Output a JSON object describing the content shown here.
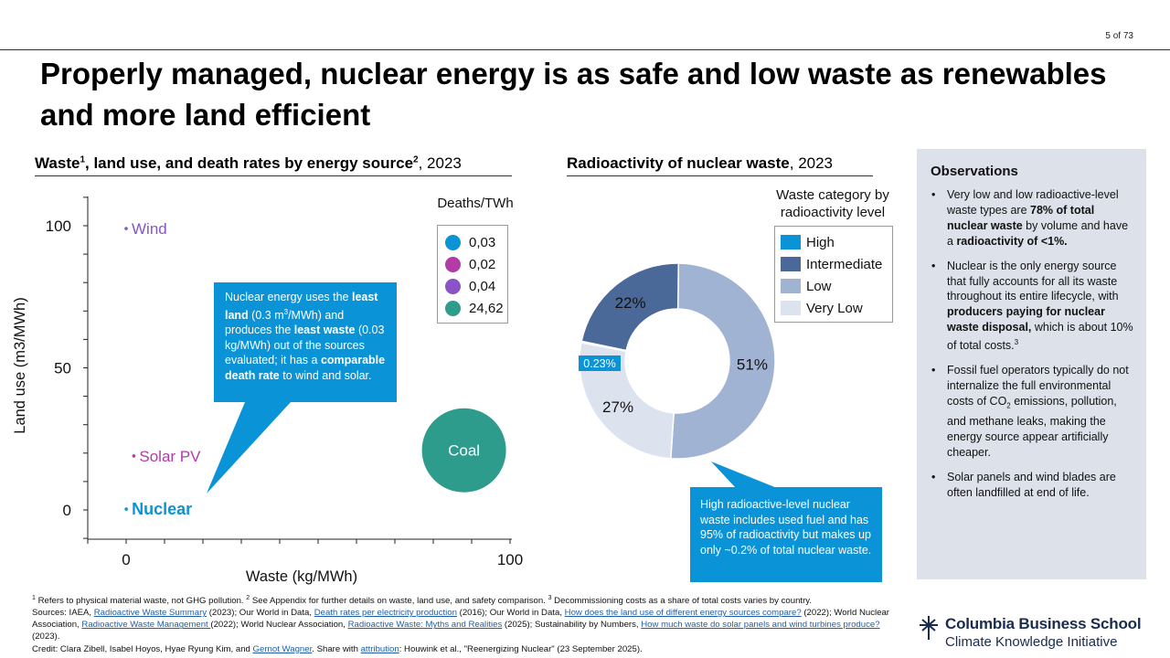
{
  "page": {
    "number": "5 of 73"
  },
  "title": "Properly managed, nuclear energy is as safe and low waste as renewables and more land efficient",
  "left_section": {
    "heading_a": "Waste",
    "heading_sup1": "1",
    "heading_b": ", land use, and death rates by energy source",
    "heading_sup2": "2",
    "heading_c": ", 2023",
    "legend_title": "Deaths/TWh",
    "legend": [
      {
        "label": "0,03",
        "color": "#0a93d6"
      },
      {
        "label": "0,02",
        "color": "#b23ba6"
      },
      {
        "label": "0,04",
        "color": "#8a53c8"
      },
      {
        "label": "24,62",
        "color": "#2e9c8c"
      }
    ],
    "callout": {
      "t1": "Nuclear energy uses the ",
      "b1": "least land",
      "t2": " (0.3 m",
      "s1": "3",
      "t3": "/MWh) and produces the ",
      "b2": "least waste",
      "t4": " (0.03 kg/MWh) out of the sources evaluated; it has a ",
      "b3": "comparable death rate",
      "t5": " to wind and solar."
    }
  },
  "right_section": {
    "heading_a": "Radioactivity of nuclear waste",
    "heading_c": ", 2023",
    "legend_title": "Waste category by radioactivity level",
    "legend": [
      {
        "label": "High",
        "color": "#0a93d6"
      },
      {
        "label": "Intermediate",
        "color": "#4a6898"
      },
      {
        "label": "Low",
        "color": "#a1b3d2"
      },
      {
        "label": "Very Low",
        "color": "#dde2ef"
      }
    ],
    "callout": "High radioactive-level nuclear waste includes used fuel and has 95% of radioactivity but makes up only ~0.2% of total nuclear waste."
  },
  "observations": {
    "title": "Observations",
    "o1": {
      "a": "Very low and low radioactive-level waste types are ",
      "b": "78% of total nuclear waste",
      "c": " by volume and have a ",
      "d": "radioactivity of <1%."
    },
    "o2": {
      "a": "Nuclear is the only energy source that fully accounts for all its waste throughout its entire lifecycle, with ",
      "b": "producers paying for nuclear waste disposal,",
      "c": " which is about 10% of total costs.",
      "s": "3"
    },
    "o3": {
      "a": "Fossil fuel operators typically do not internalize the full environmental costs of CO",
      "s": "2",
      "b": " emissions, pollution, and methane leaks, making the energy source appear artificially cheaper."
    },
    "o4": "Solar panels and wind blades are often landfilled at end of life."
  },
  "footnotes": {
    "l1a": "1",
    "l1b": " Refers to physical material waste, not GHG pollution. ",
    "l1c": "2",
    "l1d": " See Appendix for further details on waste, land use, and safety comparison. ",
    "l1e": "3",
    "l1f": " Decommissioning costs as a share of total costs varies by country.",
    "s1": "Sources: IAEA, ",
    "link1": "Radioactive Waste Summary",
    "s2": " (2023); Our World in Data, ",
    "link2": "Death rates per electricity production",
    "s3": " (2016); Our World in Data, ",
    "link3": "How does the land use of different energy sources compare?",
    "s4": " (2022); World Nuclear Association, ",
    "link4": "Radioactive Waste Management ",
    "s5": " (2022); World Nuclear Association, ",
    "link5": "Radioactive Waste: Myths and Realities",
    "s6": " (2025); Sustainability by Numbers, ",
    "link6": "How much waste do solar panels and wind turbines produce?",
    "s7": " (2023).",
    "c1": "Credit: Clara Zibell, Isabel Hoyos, Hyae Ryung Kim,  and ",
    "link7": "Gernot Wagner",
    "c2": ". Share with ",
    "link8": "attribution",
    "c3": ": Houwink et al., \"Reenergizing Nuclear\" (23 September 2025)."
  },
  "logo": {
    "line1": "Columbia Business School",
    "line2": "Climate Knowledge Initiative"
  },
  "chart_data": [
    {
      "type": "scatter",
      "xlabel": "Waste (kg/MWh)",
      "ylabel": "Land use (m3/MWh)",
      "xlim": [
        0,
        100
      ],
      "ylim": [
        0,
        100
      ],
      "xticks": [
        "0",
        "100"
      ],
      "yticks": [
        "0",
        "50",
        "100"
      ],
      "points": [
        {
          "name": "Wind",
          "x": 0,
          "y": 99,
          "deaths": 0.04,
          "color": "#8a53c8",
          "label_color": "#8a53c8"
        },
        {
          "name": "Solar PV",
          "x": 2,
          "y": 19,
          "deaths": 0.02,
          "color": "#b23ba6",
          "label_color": "#b23ba6"
        },
        {
          "name": "Nuclear",
          "x": 0.03,
          "y": 0.3,
          "deaths": 0.03,
          "color": "#0a93d6",
          "label_color": "#0a93d6"
        },
        {
          "name": "Coal",
          "x": 88,
          "y": 21,
          "deaths": 24.62,
          "color": "#2e9c8c",
          "label_color": "#ffffff"
        }
      ]
    },
    {
      "type": "pie",
      "donut": true,
      "slices": [
        {
          "name": "High",
          "value": 0.23,
          "label": "0.23%",
          "color": "#0a93d6"
        },
        {
          "name": "Intermediate",
          "value": 22,
          "label": "22%",
          "color": "#4a6898"
        },
        {
          "name": "Low",
          "value": 51,
          "label": "51%",
          "color": "#a1b3d2"
        },
        {
          "name": "Very Low",
          "value": 27,
          "label": "27%",
          "color": "#dde2ef"
        }
      ]
    }
  ]
}
